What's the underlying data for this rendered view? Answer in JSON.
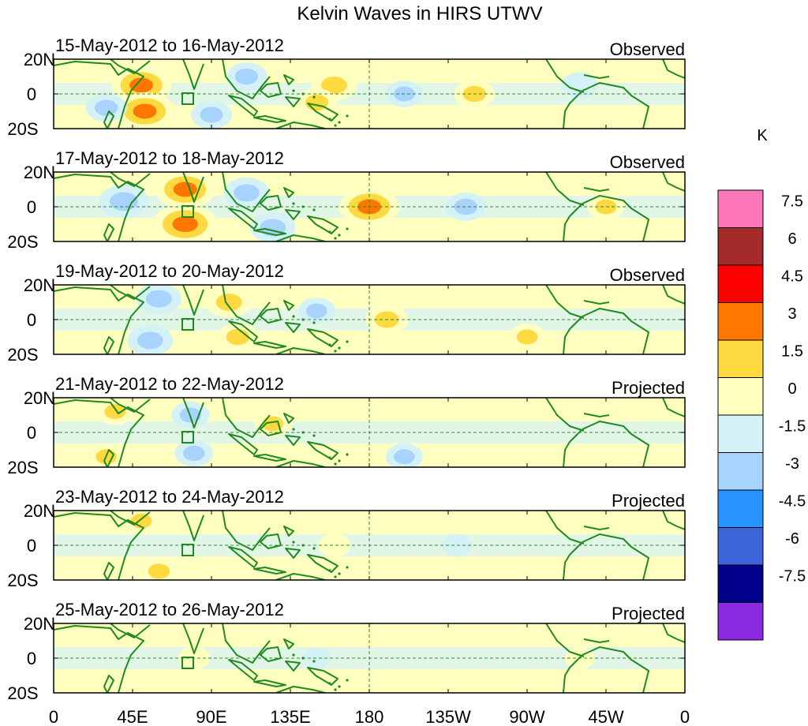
{
  "chart_data": {
    "type": "heatmap",
    "title": "Kelvin Waves in HIRS UTWV",
    "units": "K",
    "lat_ticks": [
      "20N",
      "0",
      "20S"
    ],
    "lon_ticks": [
      "0",
      "45E",
      "90E",
      "135E",
      "180",
      "135W",
      "90W",
      "45W",
      "0"
    ],
    "lon_range": [
      0,
      360
    ],
    "lat_range": [
      -20,
      20
    ],
    "colorbar": {
      "levels": [
        "7.5",
        "6",
        "4.5",
        "3",
        "1.5",
        "0",
        "-1.5",
        "-3",
        "-4.5",
        "-6",
        "-7.5"
      ],
      "colors": [
        "#ff77bb",
        "#a52a2a",
        "#ff0000",
        "#ff7700",
        "#ffd940",
        "#ffffc0",
        "#d4f2f6",
        "#a8d3ff",
        "#2794ff",
        "#3d64d8",
        "#00008b",
        "#8a2be2"
      ]
    },
    "panels": [
      {
        "date": "15-May-2012 to 16-May-2012",
        "status": "Observed",
        "anomalies": [
          {
            "lon": 50,
            "lat": 5,
            "value": 4.0
          },
          {
            "lon": 52,
            "lat": -10,
            "value": 4.0
          },
          {
            "lon": 30,
            "lat": -8,
            "value": -2.0
          },
          {
            "lon": 90,
            "lat": -12,
            "value": -2.0
          },
          {
            "lon": 110,
            "lat": 10,
            "value": -2.0
          },
          {
            "lon": 160,
            "lat": 5,
            "value": 2.5
          },
          {
            "lon": 150,
            "lat": -5,
            "value": 2.0
          },
          {
            "lon": 240,
            "lat": 0,
            "value": 2.0
          },
          {
            "lon": 200,
            "lat": 0,
            "value": -1.6
          },
          {
            "lon": 300,
            "lat": 5,
            "value": -1.5
          }
        ]
      },
      {
        "date": "17-May-2012 to 18-May-2012",
        "status": "Observed",
        "anomalies": [
          {
            "lon": 75,
            "lat": 10,
            "value": 4.0
          },
          {
            "lon": 75,
            "lat": -10,
            "value": 4.5
          },
          {
            "lon": 180,
            "lat": 0,
            "value": 4.0
          },
          {
            "lon": 40,
            "lat": 3,
            "value": -3.0
          },
          {
            "lon": 110,
            "lat": 8,
            "value": -2.5
          },
          {
            "lon": 125,
            "lat": -12,
            "value": -2.5
          },
          {
            "lon": 235,
            "lat": 0,
            "value": -2.0
          },
          {
            "lon": 315,
            "lat": 0,
            "value": 1.6
          }
        ]
      },
      {
        "date": "19-May-2012 to 20-May-2012",
        "status": "Observed",
        "anomalies": [
          {
            "lon": 100,
            "lat": 10,
            "value": 2.5
          },
          {
            "lon": 105,
            "lat": -10,
            "value": 2.0
          },
          {
            "lon": 190,
            "lat": 0,
            "value": 2.2
          },
          {
            "lon": 60,
            "lat": 12,
            "value": -2.5
          },
          {
            "lon": 55,
            "lat": -12,
            "value": -2.5
          },
          {
            "lon": 150,
            "lat": 5,
            "value": -1.6
          },
          {
            "lon": 270,
            "lat": -10,
            "value": 1.6
          }
        ]
      },
      {
        "date": "21-May-2012 to 22-May-2012",
        "status": "Projected",
        "anomalies": [
          {
            "lon": 35,
            "lat": 12,
            "value": 1.6
          },
          {
            "lon": 30,
            "lat": -14,
            "value": 1.6
          },
          {
            "lon": 78,
            "lat": 10,
            "value": -1.7
          },
          {
            "lon": 80,
            "lat": -12,
            "value": -1.7
          },
          {
            "lon": 125,
            "lat": 5,
            "value": 1.6
          },
          {
            "lon": 200,
            "lat": -14,
            "value": -1.6
          }
        ]
      },
      {
        "date": "23-May-2012 to 24-May-2012",
        "status": "Projected",
        "anomalies": [
          {
            "lon": 50,
            "lat": 14,
            "value": 1.6
          },
          {
            "lon": 60,
            "lat": -15,
            "value": 1.7
          },
          {
            "lon": 160,
            "lat": 0,
            "value": 1.0
          },
          {
            "lon": 230,
            "lat": 0,
            "value": -0.8
          }
        ]
      },
      {
        "date": "25-May-2012 to 26-May-2012",
        "status": "Projected",
        "anomalies": [
          {
            "lon": 80,
            "lat": 0,
            "value": 1.0
          },
          {
            "lon": 150,
            "lat": 0,
            "value": -0.6
          },
          {
            "lon": 300,
            "lat": 0,
            "value": 0.8
          }
        ]
      }
    ]
  }
}
